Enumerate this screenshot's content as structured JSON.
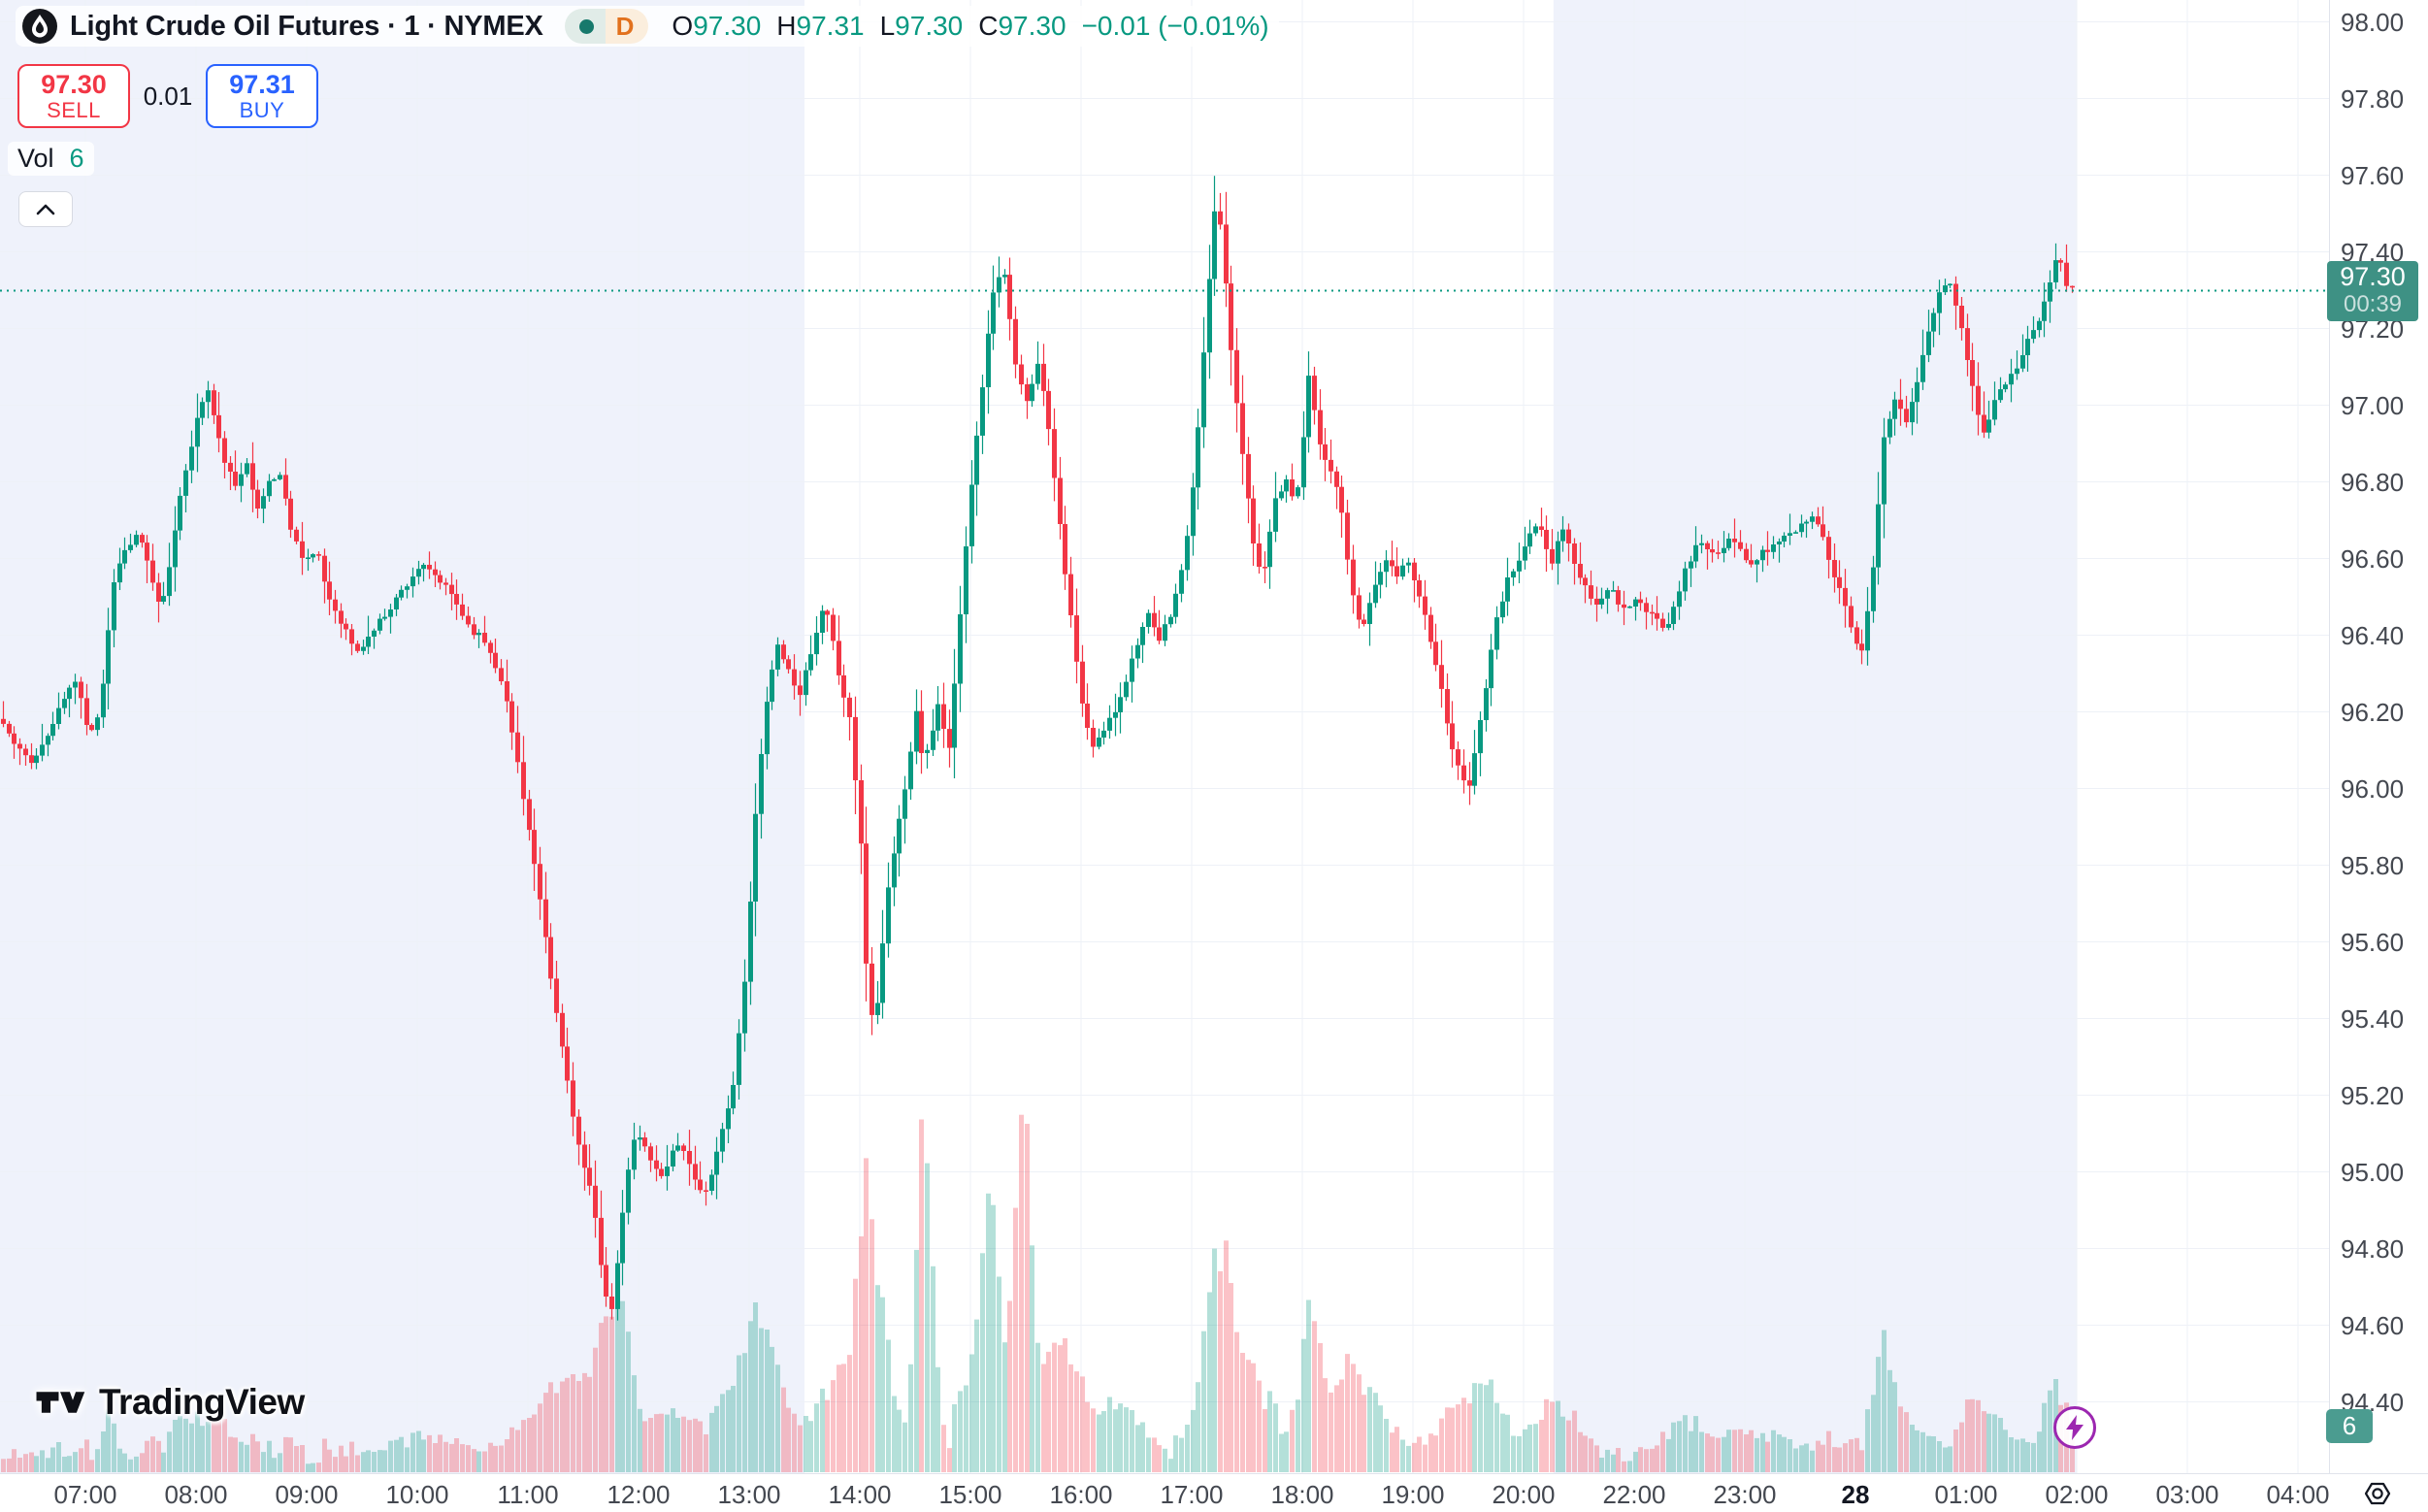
{
  "header": {
    "symbol_title": "Light Crude Oil Futures · 1 · NYMEX",
    "interval_badge": "D",
    "ohlc": {
      "o_label": "O",
      "o_value": "97.30",
      "h_label": "H",
      "h_value": "97.31",
      "l_label": "L",
      "l_value": "97.30",
      "c_label": "C",
      "c_value": "97.30",
      "change": "−0.01 (−0.01%)"
    }
  },
  "trade_panel": {
    "sell_price": "97.30",
    "sell_label": "SELL",
    "spread": "0.01",
    "buy_price": "97.31",
    "buy_label": "BUY"
  },
  "volume_legend": {
    "label": "Vol",
    "value": "6"
  },
  "price_axis": {
    "labels": [
      "98.00",
      "97.80",
      "97.60",
      "97.40",
      "97.20",
      "97.00",
      "96.80",
      "96.60",
      "96.40",
      "96.20",
      "96.00",
      "95.80",
      "95.60",
      "95.40",
      "95.20",
      "95.00",
      "94.80",
      "94.60",
      "94.40"
    ],
    "last_price": "97.30",
    "countdown": "00:39",
    "volume_value": "6"
  },
  "time_axis": {
    "labels": [
      {
        "text": "07:00"
      },
      {
        "text": "08:00"
      },
      {
        "text": "09:00"
      },
      {
        "text": "10:00"
      },
      {
        "text": "11:00"
      },
      {
        "text": "12:00"
      },
      {
        "text": "13:00"
      },
      {
        "text": "14:00"
      },
      {
        "text": "15:00"
      },
      {
        "text": "16:00"
      },
      {
        "text": "17:00"
      },
      {
        "text": "18:00"
      },
      {
        "text": "19:00"
      },
      {
        "text": "20:00"
      },
      {
        "text": "22:00"
      },
      {
        "text": "23:00"
      },
      {
        "text": "28",
        "bold": true
      },
      {
        "text": "01:00"
      },
      {
        "text": "02:00"
      },
      {
        "text": "03:00"
      },
      {
        "text": "04:00"
      }
    ]
  },
  "branding": {
    "logo_text": "TradingView"
  },
  "colors": {
    "up": "#089981",
    "down": "#f23645",
    "vol_up": "rgba(8,153,129,0.30)",
    "vol_down": "rgba(242,54,69,0.30)",
    "grid": "#eef1f7",
    "session_band": "#eff2fb",
    "last_price_line": "#089981",
    "sell_red": "#f23645",
    "buy_blue": "#2962ff",
    "label_bg": "#3e9184",
    "badge_bg": "#4b9c90",
    "bolt_purple": "#9c27b0"
  },
  "chart_data": {
    "type": "candlestick",
    "symbol": "Light Crude Oil Futures",
    "interval": "1",
    "exchange": "NYMEX",
    "ohlc_current": {
      "open": 97.3,
      "high": 97.31,
      "low": 97.3,
      "close": 97.3,
      "change": -0.01,
      "change_pct": -0.01
    },
    "last_price": 97.3,
    "current_volume": 6,
    "y_axis": {
      "min": 94.25,
      "max": 98.05,
      "tick_step": 0.2,
      "tick_min": 94.4,
      "tick_max": 98.0
    },
    "x_axis": {
      "start_hour_utc": 6.25,
      "end_hour_utc": 26.0,
      "skipped_hour": 21,
      "date_change_label": "28"
    },
    "sessions_shaded": [
      [
        6.2,
        13.5
      ],
      [
        20.27,
        26.0
      ]
    ],
    "price_path_keypoints": [
      [
        6.25,
        96.18
      ],
      [
        6.4,
        96.1
      ],
      [
        6.55,
        96.07
      ],
      [
        6.7,
        96.15
      ],
      [
        6.85,
        96.25
      ],
      [
        6.95,
        96.28
      ],
      [
        7.05,
        96.14
      ],
      [
        7.15,
        96.2
      ],
      [
        7.28,
        96.55
      ],
      [
        7.38,
        96.62
      ],
      [
        7.5,
        96.66
      ],
      [
        7.62,
        96.55
      ],
      [
        7.7,
        96.46
      ],
      [
        7.82,
        96.65
      ],
      [
        7.92,
        96.82
      ],
      [
        8.02,
        96.95
      ],
      [
        8.12,
        97.05
      ],
      [
        8.25,
        96.88
      ],
      [
        8.38,
        96.78
      ],
      [
        8.48,
        96.86
      ],
      [
        8.58,
        96.72
      ],
      [
        8.68,
        96.8
      ],
      [
        8.78,
        96.82
      ],
      [
        8.9,
        96.66
      ],
      [
        9.0,
        96.6
      ],
      [
        9.12,
        96.61
      ],
      [
        9.22,
        96.5
      ],
      [
        9.35,
        96.43
      ],
      [
        9.48,
        96.35
      ],
      [
        9.6,
        96.4
      ],
      [
        9.75,
        96.46
      ],
      [
        9.9,
        96.52
      ],
      [
        10.05,
        96.58
      ],
      [
        10.2,
        96.55
      ],
      [
        10.35,
        96.5
      ],
      [
        10.5,
        96.42
      ],
      [
        10.65,
        96.38
      ],
      [
        10.8,
        96.28
      ],
      [
        10.95,
        96.05
      ],
      [
        11.1,
        95.78
      ],
      [
        11.25,
        95.48
      ],
      [
        11.4,
        95.22
      ],
      [
        11.5,
        95.05
      ],
      [
        11.62,
        94.92
      ],
      [
        11.72,
        94.7
      ],
      [
        11.8,
        94.63
      ],
      [
        11.9,
        94.92
      ],
      [
        12.0,
        95.1
      ],
      [
        12.12,
        95.05
      ],
      [
        12.25,
        94.98
      ],
      [
        12.38,
        95.08
      ],
      [
        12.5,
        95.02
      ],
      [
        12.62,
        94.93
      ],
      [
        12.75,
        95.05
      ],
      [
        12.88,
        95.2
      ],
      [
        13.0,
        95.5
      ],
      [
        13.1,
        95.95
      ],
      [
        13.2,
        96.25
      ],
      [
        13.3,
        96.38
      ],
      [
        13.4,
        96.3
      ],
      [
        13.5,
        96.25
      ],
      [
        13.6,
        96.35
      ],
      [
        13.72,
        96.48
      ],
      [
        13.85,
        96.3
      ],
      [
        13.95,
        96.18
      ],
      [
        14.05,
        95.85
      ],
      [
        14.12,
        95.4
      ],
      [
        14.2,
        95.45
      ],
      [
        14.3,
        95.75
      ],
      [
        14.45,
        96.0
      ],
      [
        14.55,
        96.2
      ],
      [
        14.62,
        96.05
      ],
      [
        14.75,
        96.22
      ],
      [
        14.85,
        96.1
      ],
      [
        14.95,
        96.45
      ],
      [
        15.05,
        96.8
      ],
      [
        15.15,
        97.05
      ],
      [
        15.25,
        97.3
      ],
      [
        15.35,
        97.35
      ],
      [
        15.45,
        97.1
      ],
      [
        15.55,
        97.0
      ],
      [
        15.65,
        97.12
      ],
      [
        15.75,
        96.95
      ],
      [
        15.85,
        96.7
      ],
      [
        15.95,
        96.45
      ],
      [
        16.05,
        96.22
      ],
      [
        16.15,
        96.1
      ],
      [
        16.25,
        96.15
      ],
      [
        16.35,
        96.2
      ],
      [
        16.45,
        96.28
      ],
      [
        16.55,
        96.38
      ],
      [
        16.65,
        96.45
      ],
      [
        16.75,
        96.38
      ],
      [
        16.85,
        96.45
      ],
      [
        16.95,
        96.55
      ],
      [
        17.05,
        96.75
      ],
      [
        17.15,
        97.1
      ],
      [
        17.25,
        97.5
      ],
      [
        17.32,
        97.45
      ],
      [
        17.42,
        97.1
      ],
      [
        17.52,
        96.85
      ],
      [
        17.62,
        96.62
      ],
      [
        17.7,
        96.55
      ],
      [
        17.8,
        96.75
      ],
      [
        17.9,
        96.8
      ],
      [
        18.0,
        96.75
      ],
      [
        18.07,
        96.95
      ],
      [
        18.12,
        97.12
      ],
      [
        18.18,
        96.92
      ],
      [
        18.28,
        96.85
      ],
      [
        18.38,
        96.78
      ],
      [
        18.48,
        96.55
      ],
      [
        18.58,
        96.4
      ],
      [
        18.7,
        96.52
      ],
      [
        18.8,
        96.6
      ],
      [
        18.9,
        96.55
      ],
      [
        19.0,
        96.6
      ],
      [
        19.1,
        96.52
      ],
      [
        19.25,
        96.35
      ],
      [
        19.4,
        96.12
      ],
      [
        19.55,
        95.98
      ],
      [
        19.68,
        96.2
      ],
      [
        19.8,
        96.42
      ],
      [
        19.92,
        96.55
      ],
      [
        20.05,
        96.62
      ],
      [
        20.18,
        96.7
      ],
      [
        20.3,
        96.58
      ],
      [
        20.42,
        96.68
      ],
      [
        20.55,
        96.55
      ],
      [
        20.7,
        96.48
      ],
      [
        20.85,
        96.52
      ],
      [
        20.98,
        96.46
      ],
      [
        22.05,
        96.5
      ],
      [
        22.2,
        96.45
      ],
      [
        22.35,
        96.42
      ],
      [
        22.5,
        96.55
      ],
      [
        22.65,
        96.65
      ],
      [
        22.8,
        96.6
      ],
      [
        22.95,
        96.65
      ],
      [
        23.1,
        96.58
      ],
      [
        23.25,
        96.62
      ],
      [
        23.4,
        96.65
      ],
      [
        23.55,
        96.68
      ],
      [
        23.7,
        96.72
      ],
      [
        23.82,
        96.6
      ],
      [
        23.95,
        96.5
      ],
      [
        24.05,
        96.4
      ],
      [
        24.12,
        96.36
      ],
      [
        24.22,
        96.55
      ],
      [
        24.32,
        96.9
      ],
      [
        24.42,
        97.02
      ],
      [
        24.52,
        96.96
      ],
      [
        24.62,
        97.05
      ],
      [
        24.72,
        97.18
      ],
      [
        24.82,
        97.28
      ],
      [
        24.92,
        97.33
      ],
      [
        25.02,
        97.22
      ],
      [
        25.12,
        97.05
      ],
      [
        25.22,
        96.93
      ],
      [
        25.32,
        97.0
      ],
      [
        25.42,
        97.06
      ],
      [
        25.52,
        97.1
      ],
      [
        25.62,
        97.16
      ],
      [
        25.72,
        97.22
      ],
      [
        25.82,
        97.32
      ],
      [
        25.9,
        97.4
      ],
      [
        26.0,
        97.3
      ]
    ],
    "volume_spikes": [
      [
        8.1,
        25,
        0.25
      ],
      [
        10.1,
        20,
        0.3
      ],
      [
        11.5,
        60,
        0.3
      ],
      [
        11.8,
        95,
        0.12
      ],
      [
        12.3,
        40,
        0.2
      ],
      [
        12.9,
        50,
        0.2
      ],
      [
        13.2,
        70,
        0.15
      ],
      [
        13.75,
        60,
        0.15
      ],
      [
        14.1,
        200,
        0.12
      ],
      [
        14.6,
        330,
        0.07
      ],
      [
        15.2,
        230,
        0.1
      ],
      [
        15.5,
        340,
        0.07
      ],
      [
        15.8,
        80,
        0.15
      ],
      [
        16.3,
        50,
        0.2
      ],
      [
        17.28,
        180,
        0.1
      ],
      [
        17.6,
        60,
        0.15
      ],
      [
        18.1,
        90,
        0.1
      ],
      [
        18.5,
        70,
        0.25
      ],
      [
        19.6,
        55,
        0.2
      ],
      [
        20.3,
        45,
        0.2
      ],
      [
        22.6,
        28,
        0.3
      ],
      [
        23.3,
        20,
        0.3
      ],
      [
        24.35,
        75,
        0.12
      ],
      [
        25.2,
        40,
        0.2
      ],
      [
        25.85,
        65,
        0.1
      ]
    ]
  }
}
